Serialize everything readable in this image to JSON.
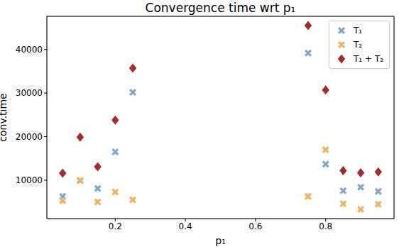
{
  "chart_data": {
    "type": "scatter",
    "title": "Convergence time wrt p₁",
    "x_label": "p₁",
    "y_label": "conv.time",
    "x": [
      0.05,
      0.1,
      0.15,
      0.2,
      0.25,
      0.75,
      0.8,
      0.85,
      0.9,
      0.95
    ],
    "series": [
      {
        "name": "T₁",
        "color": "#7ea6cf",
        "marker": "x",
        "values": [
          6300,
          9900,
          8100,
          16500,
          30200,
          39200,
          13700,
          7600,
          8400,
          7400
        ]
      },
      {
        "name": "T₂",
        "color": "#f7b05b",
        "marker": "x",
        "values": [
          5300,
          10000,
          5000,
          7300,
          5500,
          6300,
          17000,
          4600,
          3300,
          4500
        ]
      },
      {
        "name": "T₁ + T₂",
        "color": "#a52a2a",
        "marker": "diamond",
        "values": [
          11600,
          19900,
          13100,
          23800,
          35700,
          45500,
          30700,
          12200,
          11700,
          11900
        ]
      }
    ],
    "xlim": [
      0.005,
      0.995
    ],
    "ylim": [
      1190,
      47610
    ],
    "xticks": [
      0.2,
      0.4,
      0.6,
      0.8
    ],
    "yticks": [
      10000,
      20000,
      30000,
      40000
    ],
    "grid": true,
    "legend": "upper right"
  }
}
